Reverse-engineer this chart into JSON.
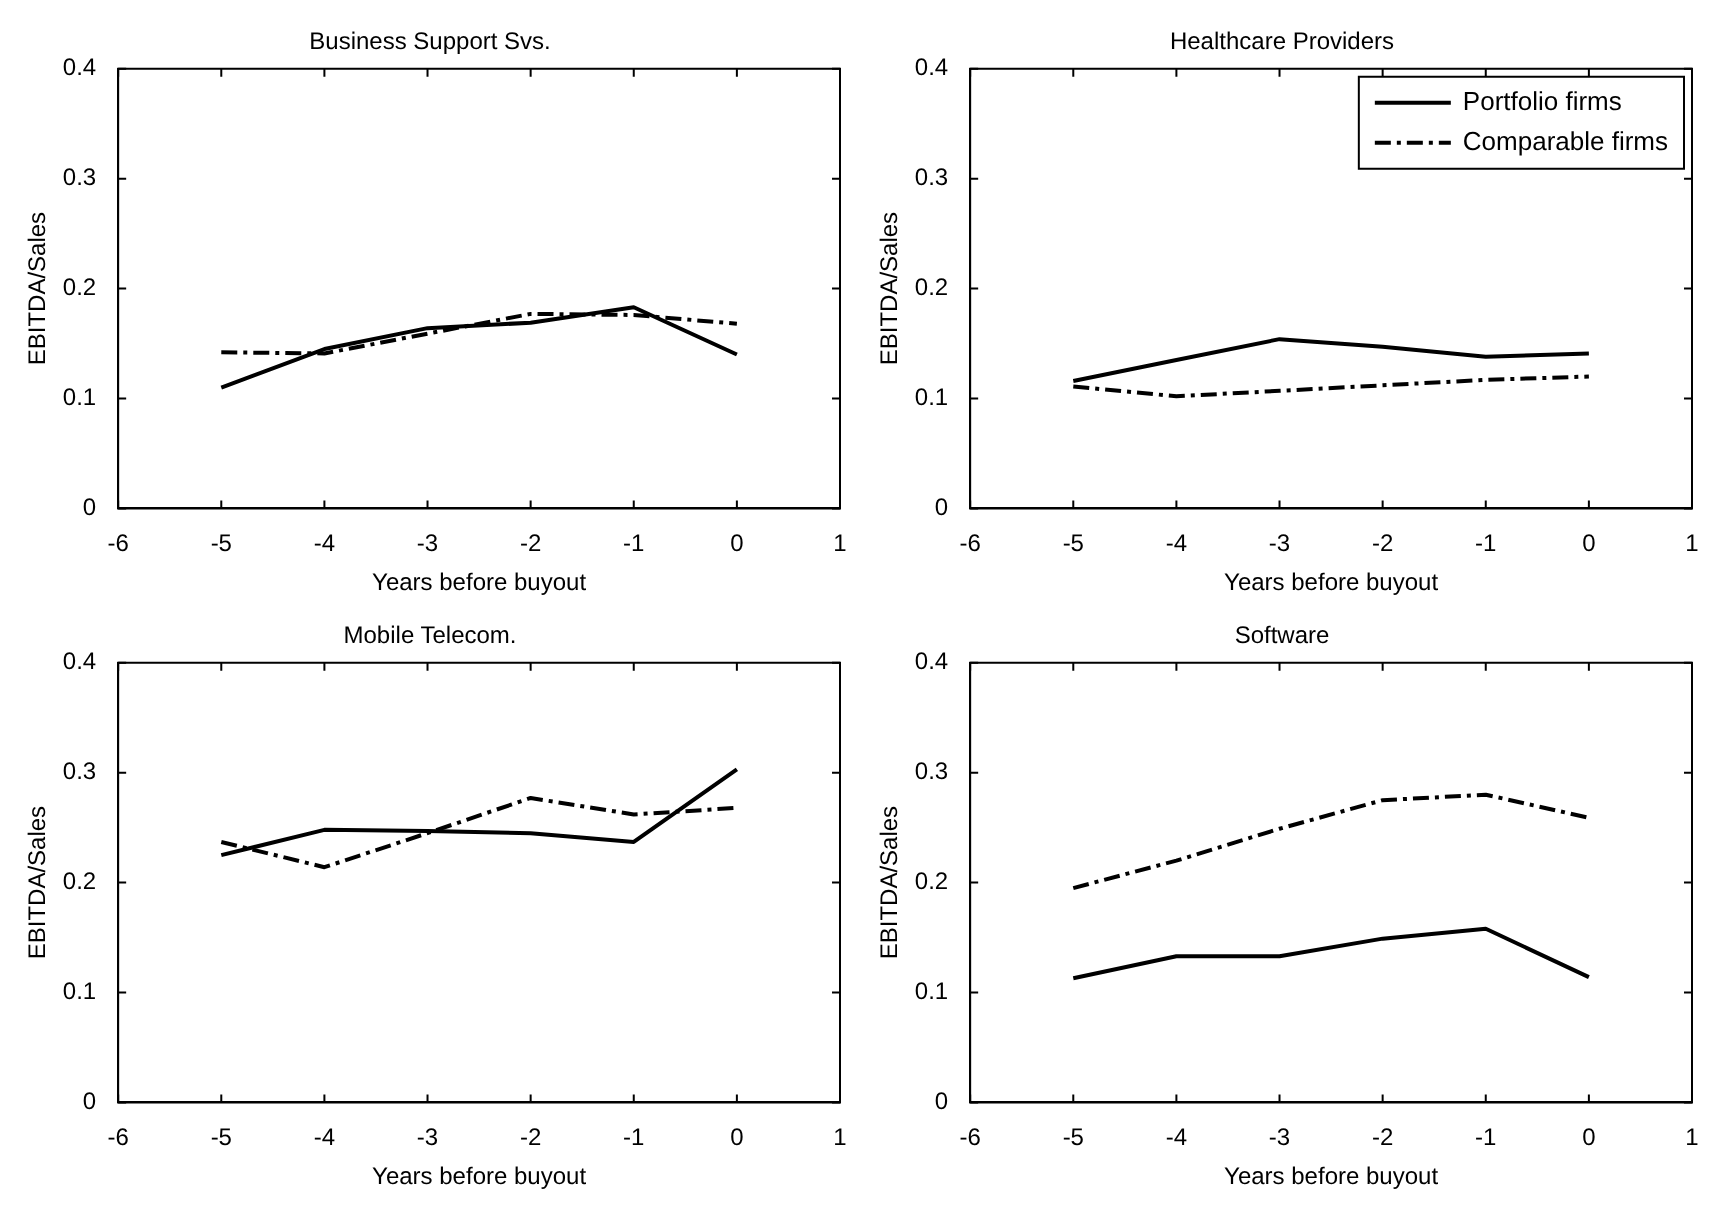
{
  "chart_data": [
    {
      "type": "line",
      "title": "Business Support Svs.",
      "xlabel": "Years before buyout",
      "ylabel": "EBITDA/Sales",
      "x": [
        -5,
        -4,
        -3,
        -2,
        -1,
        0
      ],
      "xlim": [
        -6,
        1
      ],
      "xticks": [
        -6,
        -5,
        -4,
        -3,
        -2,
        -1,
        0,
        1
      ],
      "ylim": [
        0,
        0.4
      ],
      "yticks": [
        0,
        0.1,
        0.2,
        0.3,
        0.4
      ],
      "grid": false,
      "legend": false,
      "series": [
        {
          "color": "#000000",
          "line_style": "solid",
          "values": [
            0.11,
            0.145,
            0.164,
            0.169,
            0.183,
            0.14
          ]
        },
        {
          "color": "#000000",
          "line_style": "dashed",
          "values": [
            0.142,
            0.141,
            0.159,
            0.177,
            0.176,
            0.168
          ]
        }
      ]
    },
    {
      "type": "line",
      "title": "Healthcare Providers",
      "xlabel": "Years before buyout",
      "ylabel": "EBITDA/Sales",
      "x": [
        -5,
        -4,
        -3,
        -2,
        -1,
        0
      ],
      "xlim": [
        -6,
        1
      ],
      "xticks": [
        -6,
        -5,
        -4,
        -3,
        -2,
        -1,
        0,
        1
      ],
      "ylim": [
        0,
        0.4
      ],
      "yticks": [
        0,
        0.1,
        0.2,
        0.3,
        0.4
      ],
      "grid": false,
      "legend": "top right",
      "series": [
        {
          "name": "Portfolio firms",
          "color": "#000000",
          "line_style": "solid",
          "values": [
            0.116,
            0.135,
            0.154,
            0.147,
            0.138,
            0.141
          ]
        },
        {
          "name": "Comparable firms",
          "color": "#000000",
          "line_style": "dashed",
          "values": [
            0.111,
            0.102,
            0.107,
            0.112,
            0.117,
            0.12
          ]
        }
      ]
    },
    {
      "type": "line",
      "title": "Mobile Telecom.",
      "xlabel": "Years before buyout",
      "ylabel": "EBITDA/Sales",
      "x": [
        -5,
        -4,
        -3,
        -2,
        -1,
        0
      ],
      "xlim": [
        -6,
        1
      ],
      "xticks": [
        -6,
        -5,
        -4,
        -3,
        -2,
        -1,
        0,
        1
      ],
      "ylim": [
        0,
        0.4
      ],
      "yticks": [
        0,
        0.1,
        0.2,
        0.3,
        0.4
      ],
      "grid": false,
      "legend": false,
      "series": [
        {
          "color": "#000000",
          "line_style": "solid",
          "values": [
            0.225,
            0.248,
            0.247,
            0.245,
            0.237,
            0.303
          ]
        },
        {
          "color": "#000000",
          "line_style": "dashed",
          "values": [
            0.237,
            0.214,
            0.245,
            0.277,
            0.262,
            0.268
          ]
        }
      ]
    },
    {
      "type": "line",
      "title": "Software",
      "xlabel": "Years before buyout",
      "ylabel": "EBITDA/Sales",
      "x": [
        -5,
        -4,
        -3,
        -2,
        -1,
        0
      ],
      "xlim": [
        -6,
        1
      ],
      "xticks": [
        -6,
        -5,
        -4,
        -3,
        -2,
        -1,
        0,
        1
      ],
      "ylim": [
        0,
        0.4
      ],
      "yticks": [
        0,
        0.1,
        0.2,
        0.3,
        0.4
      ],
      "grid": false,
      "legend": false,
      "series": [
        {
          "color": "#000000",
          "line_style": "solid",
          "values": [
            0.113,
            0.133,
            0.133,
            0.149,
            0.158,
            0.114
          ]
        },
        {
          "color": "#000000",
          "line_style": "dashed",
          "values": [
            0.195,
            0.22,
            0.249,
            0.275,
            0.28,
            0.259
          ]
        }
      ]
    }
  ]
}
